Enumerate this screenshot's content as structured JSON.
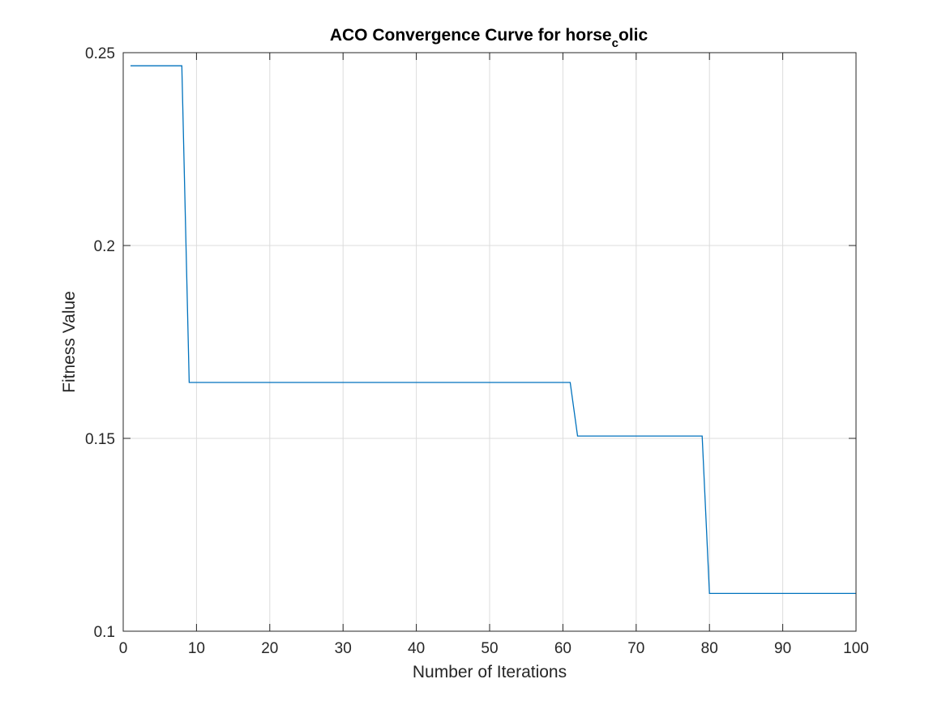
{
  "chart_data": {
    "type": "line",
    "title": {
      "main": "ACO Convergence Curve for horse",
      "subscript": "c",
      "rest": "olic"
    },
    "xlabel": "Number of Iterations",
    "ylabel": "Fitness Value",
    "xlim": [
      0,
      100
    ],
    "ylim": [
      0.1,
      0.25
    ],
    "xticks": [
      0,
      10,
      20,
      30,
      40,
      50,
      60,
      70,
      80,
      90,
      100
    ],
    "xtick_labels": [
      "0",
      "10",
      "20",
      "30",
      "40",
      "50",
      "60",
      "70",
      "80",
      "90",
      "100"
    ],
    "yticks": [
      0.1,
      0.15,
      0.2,
      0.25
    ],
    "ytick_labels": [
      "0.1",
      "0.15",
      "0.2",
      "0.25"
    ],
    "grid": true,
    "series": [
      {
        "color": "#0072bd",
        "x": [
          1,
          8,
          9,
          61,
          62,
          79,
          80,
          100
        ],
        "y": [
          0.2466,
          0.2466,
          0.1645,
          0.1645,
          0.1506,
          0.1506,
          0.1098,
          0.1098
        ]
      }
    ]
  }
}
